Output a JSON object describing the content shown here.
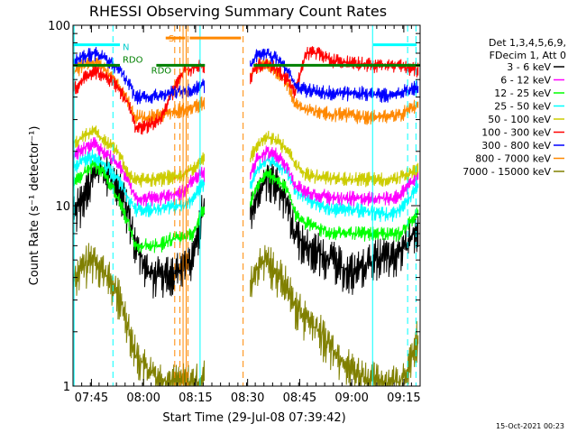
{
  "chart_data": {
    "type": "line",
    "title": "RHESSI Observing Summary Count Rates",
    "xlabel": "Start Time (29-Jul-08 07:39:42)",
    "ylabel": "Count Rate (s⁻¹ detector⁻¹)",
    "yscale": "log",
    "ylim": [
      1,
      100
    ],
    "xlim_minutes": [
      0,
      100
    ],
    "x_ticks": [
      {
        "label": "07:45",
        "minute": 5.3
      },
      {
        "label": "08:00",
        "minute": 20.3
      },
      {
        "label": "08:15",
        "minute": 35.3
      },
      {
        "label": "08:30",
        "minute": 50.3
      },
      {
        "label": "08:45",
        "minute": 65.3
      },
      {
        "label": "09:00",
        "minute": 80.3
      },
      {
        "label": "09:15",
        "minute": 95.3
      }
    ],
    "y_ticks": [
      {
        "label": "1",
        "value": 1
      },
      {
        "label": "10",
        "value": 10
      },
      {
        "label": "100",
        "value": 100
      }
    ],
    "legend": {
      "placement": "right",
      "header": [
        "Det 1,3,4,5,6,9,",
        "FDecim 1, Att 0"
      ],
      "entries": [
        "3 - 6 keV",
        "6 - 12 keV",
        "12 - 25 keV",
        "25 - 50 keV",
        "50 - 100 keV",
        "100 - 300 keV",
        "300 - 800 keV",
        "800 - 7000 keV",
        "7000 - 15000 keV"
      ]
    },
    "annotations": {
      "s_label": "S",
      "n_label": "N",
      "rdo_label_1": "RDO",
      "rdo_label_2": "RDO"
    },
    "timestamp": "15-Oct-2021 00:23",
    "gaps_minutes": [
      [
        38,
        51
      ]
    ],
    "series": [
      {
        "name": "3 - 6 keV",
        "color": "#000000",
        "x": [
          0,
          3,
          6,
          9,
          13,
          16,
          18,
          22,
          25,
          28,
          32,
          34.5,
          37,
          51,
          53,
          56,
          59,
          62,
          64,
          67,
          71,
          75,
          79,
          83,
          88,
          90,
          92,
          94,
          97,
          99
        ],
        "y": [
          9,
          11,
          15,
          16,
          13,
          9,
          6,
          4.2,
          4.1,
          4.3,
          4.5,
          5,
          9,
          9,
          11,
          15,
          13,
          10,
          7,
          6,
          5.5,
          5,
          4.3,
          4.5,
          5.2,
          5.3,
          5,
          5.5,
          6.5,
          7.5
        ]
      },
      {
        "name": "6 - 12 keV",
        "color": "#ff00ff",
        "x": [
          0,
          3,
          6,
          9,
          13,
          16,
          18,
          22,
          25,
          28,
          32,
          34.5,
          37,
          51,
          53,
          56,
          59,
          62,
          64,
          67,
          71,
          75,
          79,
          83,
          88,
          90,
          92,
          94,
          97,
          99
        ],
        "y": [
          19,
          21,
          22,
          20,
          17,
          14,
          11,
          11,
          11,
          11.5,
          12,
          14,
          15,
          15,
          18,
          20,
          19,
          16,
          13,
          12,
          11.5,
          11,
          11,
          11,
          11,
          11,
          11,
          11.5,
          13,
          15
        ]
      },
      {
        "name": "12 - 25 keV",
        "color": "#00ff00",
        "x": [
          0,
          3,
          6,
          9,
          13,
          16,
          18,
          22,
          25,
          28,
          32,
          34.5,
          37,
          51,
          53,
          56,
          59,
          62,
          64,
          67,
          71,
          75,
          79,
          83,
          88,
          90,
          92,
          94,
          97,
          99
        ],
        "y": [
          13,
          15,
          17,
          15,
          11,
          8,
          6,
          6,
          6,
          6.5,
          6.7,
          7,
          9,
          10,
          13,
          15,
          14,
          12,
          9,
          8,
          7.5,
          7,
          7,
          7,
          7,
          7,
          7,
          7,
          8,
          9
        ]
      },
      {
        "name": "25 - 50 keV",
        "color": "#00ffff",
        "x": [
          0,
          3,
          6,
          9,
          13,
          16,
          18,
          22,
          25,
          28,
          32,
          34.5,
          37,
          51,
          53,
          56,
          59,
          62,
          64,
          67,
          71,
          75,
          79,
          83,
          88,
          90,
          92,
          94,
          97,
          99
        ],
        "y": [
          16,
          18,
          19,
          17,
          14,
          11,
          9.5,
          9.5,
          9.5,
          10,
          10,
          11,
          13,
          13,
          16,
          18,
          17,
          15,
          12,
          11,
          10,
          9.5,
          9.5,
          9.5,
          9,
          9,
          9,
          9.5,
          11,
          13
        ]
      },
      {
        "name": "50 - 100 keV",
        "color": "#cccc00",
        "x": [
          0,
          3,
          6,
          9,
          13,
          16,
          18,
          22,
          25,
          28,
          32,
          34.5,
          37,
          51,
          53,
          56,
          59,
          62,
          64,
          67,
          71,
          75,
          79,
          83,
          88,
          90,
          92,
          94,
          97,
          99
        ],
        "y": [
          22,
          24,
          26,
          23,
          20,
          15,
          14,
          14,
          14,
          14.5,
          15,
          16,
          18,
          18,
          22,
          24,
          23,
          20,
          17,
          15,
          14.5,
          14,
          14,
          14,
          14,
          14,
          14,
          14.5,
          15,
          16
        ]
      },
      {
        "name": "100 - 300 keV",
        "color": "#ff0000",
        "x": [
          0,
          3,
          6,
          9,
          13,
          16,
          18,
          22,
          25,
          28,
          32,
          34.5,
          37,
          51,
          53,
          56,
          59,
          62,
          64,
          67,
          71,
          75,
          79,
          83,
          88,
          90,
          92,
          94,
          97,
          99
        ],
        "y": [
          44,
          50,
          56,
          53,
          45,
          37,
          27,
          28,
          30,
          40,
          56,
          58,
          60,
          52,
          60,
          62,
          56,
          50,
          42,
          70,
          70,
          64,
          62,
          61,
          60,
          60,
          60,
          60,
          58,
          57
        ]
      },
      {
        "name": "300 - 800 keV",
        "color": "#0000ff",
        "x": [
          0,
          3,
          6,
          9,
          13,
          16,
          18,
          22,
          25,
          28,
          32,
          34.5,
          37,
          51,
          53,
          56,
          59,
          62,
          64,
          67,
          71,
          75,
          79,
          83,
          88,
          90,
          92,
          94,
          97,
          99
        ],
        "y": [
          62,
          68,
          70,
          66,
          58,
          48,
          40,
          40,
          41,
          42,
          43,
          44,
          46,
          60,
          68,
          70,
          64,
          56,
          47,
          44,
          43,
          42,
          42,
          42,
          41,
          41,
          41,
          42,
          44,
          46
        ]
      },
      {
        "name": "800 - 7000 keV",
        "color": "#ff8800",
        "x": [
          0,
          3,
          6,
          9,
          13,
          16,
          18,
          22,
          25,
          28,
          32,
          34.5,
          37,
          51,
          53,
          56,
          59,
          62,
          64,
          67,
          71,
          75,
          79,
          83,
          88,
          90,
          92,
          94,
          97,
          99
        ],
        "y": [
          55,
          60,
          63,
          58,
          48,
          38,
          31,
          31,
          32,
          33,
          34,
          35,
          37,
          52,
          60,
          62,
          55,
          46,
          37,
          34,
          33,
          32,
          32,
          31,
          31,
          31,
          31,
          32,
          34,
          36
        ]
      },
      {
        "name": "7000 - 15000 keV",
        "color": "#808000",
        "x": [
          0,
          3,
          6,
          9,
          13,
          16,
          18,
          22,
          25,
          28,
          32,
          34.5,
          37,
          51,
          53,
          56,
          59,
          62,
          64,
          67,
          71,
          75,
          79,
          83,
          88,
          90,
          92,
          94,
          97,
          99
        ],
        "y": [
          4,
          4.6,
          5.2,
          4.3,
          3.2,
          2.2,
          1.5,
          1.2,
          1.1,
          1.05,
          1.05,
          1.05,
          1.05,
          3.5,
          4.5,
          5,
          4.2,
          3.5,
          2.8,
          2.4,
          2.0,
          1.6,
          1.3,
          1.15,
          1.05,
          1.05,
          1.05,
          1.05,
          1.3,
          1.8
        ]
      }
    ],
    "markers": {
      "rdo_level": 60,
      "cyan_level": 78,
      "orange_level": 85,
      "vlines": [
        {
          "minute": 0.3,
          "color": "#00ffff",
          "style": "solid"
        },
        {
          "minute": 11.5,
          "color": "#00ffff",
          "style": "dash"
        },
        {
          "minute": 29.3,
          "color": "#ff8800",
          "style": "dash"
        },
        {
          "minute": 30.8,
          "color": "#ff8800",
          "style": "dash"
        },
        {
          "minute": 31.7,
          "color": "#ff8800",
          "style": "solid"
        },
        {
          "minute": 32.6,
          "color": "#ff8800",
          "style": "solid"
        },
        {
          "minute": 33.1,
          "color": "#ff8800",
          "style": "dash"
        },
        {
          "minute": 36.6,
          "color": "#00ffff",
          "style": "solid"
        },
        {
          "minute": 49.0,
          "color": "#ff8800",
          "style": "dash"
        },
        {
          "minute": 86.3,
          "color": "#00ffff",
          "style": "solid"
        },
        {
          "minute": 96.4,
          "color": "#00ffff",
          "style": "dash"
        },
        {
          "minute": 98.8,
          "color": "#00ffff",
          "style": "dash"
        }
      ],
      "rdo_segments": [
        [
          -1,
          13.5
        ],
        [
          24,
          38
        ],
        [
          52,
          100
        ]
      ],
      "cyan_segments": [
        [
          -0.5,
          13.5
        ],
        [
          86.5,
          99
        ]
      ],
      "orange_segments": [
        [
          26.7,
          32.3
        ],
        [
          33.6,
          48.4
        ]
      ]
    }
  }
}
